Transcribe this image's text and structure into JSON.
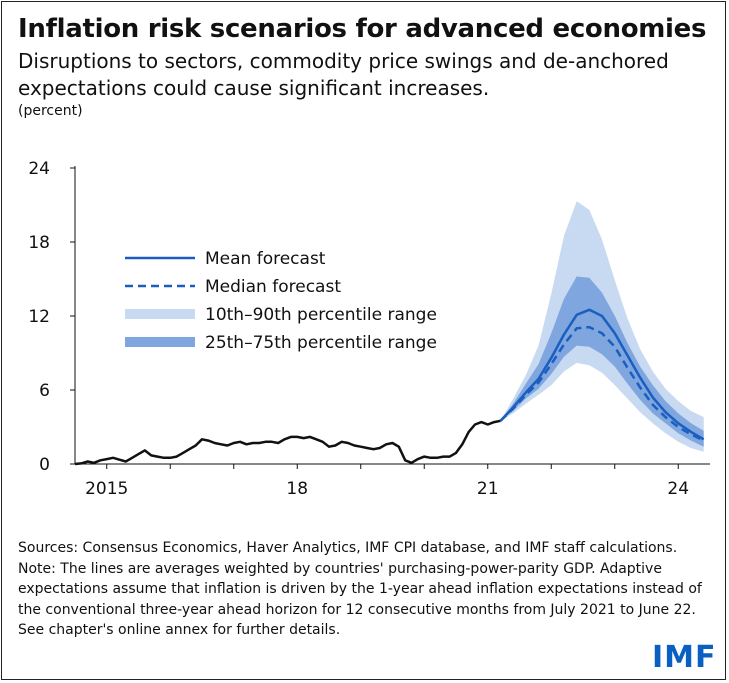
{
  "title": "Inflation risk scenarios for advanced economies",
  "subtitle": "Disruptions to sectors, commodity price swings and de-anchored expectations could cause significant increases.",
  "unit": "(percent)",
  "notes": {
    "sources": "Sources: Consensus Economics, Haver Analytics, IMF CPI database, and IMF staff calculations.",
    "note": "Note: The lines are averages weighted by countries' purchasing-power-parity GDP. Adaptive expectations assume that inflation is driven by the 1-year ahead inflation expectations instead of the conventional three-year ahead horizon for 12 consecutive months from July 2021 to June 22. See chapter's online annex for further details."
  },
  "logo": "IMF",
  "colors": {
    "historical": "#111111",
    "mean": "#1a5fc0",
    "band_10_90": "#c8d9f2",
    "band_25_75": "#7fa6de"
  },
  "chart_data": {
    "type": "line",
    "x_unit": "year",
    "xlim": [
      2014.5,
      2024.5
    ],
    "ylim": [
      0,
      24
    ],
    "yticks": [
      0,
      6,
      12,
      18,
      24
    ],
    "xticks": [
      {
        "value": 2015,
        "label": "2015"
      },
      {
        "value": 2018,
        "label": "18"
      },
      {
        "value": 2021,
        "label": "21"
      },
      {
        "value": 2024,
        "label": "24"
      }
    ],
    "legend": {
      "position": "top-left",
      "items": [
        {
          "label": "Mean forecast",
          "style": "solid-line"
        },
        {
          "label": "Median forecast",
          "style": "dashed-line"
        },
        {
          "label": "10th–90th percentile range",
          "style": "light-band"
        },
        {
          "label": "25th–75th percentile range",
          "style": "dark-band"
        }
      ]
    },
    "historical": {
      "x": [
        2014.5,
        2014.6,
        2014.7,
        2014.8,
        2014.9,
        2015.0,
        2015.1,
        2015.2,
        2015.3,
        2015.4,
        2015.5,
        2015.6,
        2015.7,
        2015.8,
        2015.9,
        2016.0,
        2016.1,
        2016.2,
        2016.3,
        2016.4,
        2016.5,
        2016.6,
        2016.7,
        2016.8,
        2016.9,
        2017.0,
        2017.1,
        2017.2,
        2017.3,
        2017.4,
        2017.5,
        2017.6,
        2017.7,
        2017.8,
        2017.9,
        2018.0,
        2018.1,
        2018.2,
        2018.3,
        2018.4,
        2018.5,
        2018.6,
        2018.7,
        2018.8,
        2018.9,
        2019.0,
        2019.1,
        2019.2,
        2019.3,
        2019.4,
        2019.5,
        2019.6,
        2019.7,
        2019.8,
        2019.9,
        2020.0,
        2020.1,
        2020.2,
        2020.3,
        2020.4,
        2020.5,
        2020.6,
        2020.7,
        2020.8,
        2020.9,
        2021.0,
        2021.1,
        2021.2
      ],
      "y": [
        0.0,
        0.05,
        0.2,
        0.1,
        0.3,
        0.4,
        0.5,
        0.35,
        0.2,
        0.5,
        0.8,
        1.1,
        0.7,
        0.6,
        0.5,
        0.5,
        0.6,
        0.9,
        1.2,
        1.5,
        2.0,
        1.9,
        1.7,
        1.6,
        1.5,
        1.7,
        1.8,
        1.6,
        1.7,
        1.7,
        1.8,
        1.8,
        1.7,
        2.0,
        2.2,
        2.2,
        2.1,
        2.2,
        2.0,
        1.8,
        1.4,
        1.5,
        1.8,
        1.7,
        1.5,
        1.4,
        1.3,
        1.2,
        1.3,
        1.6,
        1.7,
        1.4,
        0.3,
        0.1,
        0.4,
        0.6,
        0.5,
        0.5,
        0.6,
        0.6,
        0.9,
        1.6,
        2.6,
        3.2,
        3.4,
        3.2,
        3.4,
        3.5
      ]
    },
    "forecast_x": [
      2021.2,
      2021.4,
      2021.6,
      2021.8,
      2022.0,
      2022.2,
      2022.4,
      2022.6,
      2022.8,
      2023.0,
      2023.2,
      2023.4,
      2023.6,
      2023.8,
      2024.0,
      2024.2,
      2024.4
    ],
    "series": [
      {
        "name": "Mean forecast",
        "values": [
          3.5,
          4.6,
          5.8,
          6.9,
          8.6,
          10.5,
          12.1,
          12.5,
          12.0,
          10.6,
          8.8,
          7.0,
          5.4,
          4.2,
          3.3,
          2.6,
          2.0
        ]
      },
      {
        "name": "Median forecast",
        "values": [
          3.5,
          4.5,
          5.6,
          6.6,
          8.1,
          9.7,
          11.0,
          11.1,
          10.6,
          9.5,
          7.8,
          6.2,
          4.8,
          3.8,
          3.0,
          2.4,
          1.9
        ]
      }
    ],
    "bands": [
      {
        "name": "10th–90th percentile range",
        "lower": [
          3.5,
          4.1,
          4.9,
          5.6,
          6.4,
          7.5,
          8.2,
          8.0,
          7.4,
          6.4,
          5.3,
          4.2,
          3.3,
          2.5,
          1.8,
          1.3,
          1.0
        ],
        "upper": [
          3.5,
          5.3,
          7.2,
          9.6,
          13.8,
          18.5,
          21.3,
          20.6,
          18.2,
          14.9,
          11.8,
          9.3,
          7.5,
          6.1,
          5.1,
          4.3,
          3.8
        ]
      },
      {
        "name": "25th–75th percentile range",
        "lower": [
          3.5,
          4.3,
          5.3,
          6.1,
          7.3,
          8.7,
          9.6,
          9.5,
          8.9,
          7.9,
          6.5,
          5.2,
          4.1,
          3.3,
          2.5,
          1.9,
          1.4
        ]
      },
      {
        "name": "25th–75th percentile range (upper)",
        "upper": [
          3.5,
          4.9,
          6.5,
          8.1,
          10.6,
          13.4,
          15.2,
          15.1,
          13.9,
          12.0,
          9.8,
          7.9,
          6.4,
          5.1,
          4.1,
          3.3,
          2.7
        ]
      }
    ]
  }
}
